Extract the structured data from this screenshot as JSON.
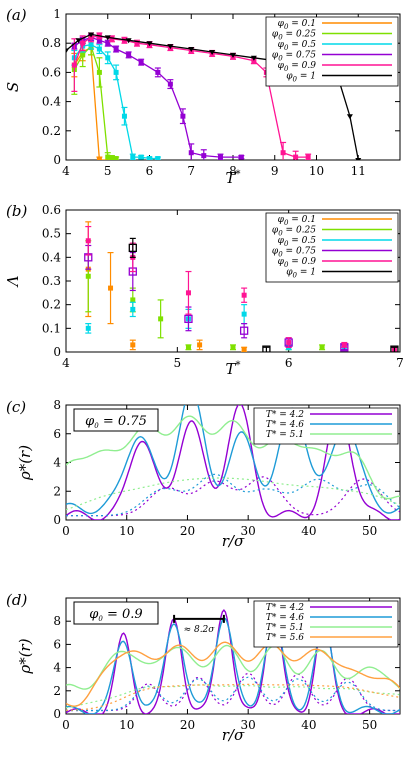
{
  "chart_data": [
    {
      "panel": "(a)",
      "type": "line",
      "xlabel": "T*",
      "ylabel": "S",
      "xlim": [
        4,
        12
      ],
      "ylim": [
        0,
        1
      ],
      "xticks": [
        "4",
        "5",
        "6",
        "7",
        "8",
        "9",
        "10",
        "11"
      ],
      "yticks": [
        "0",
        "0.2",
        "0.4",
        "0.6",
        "0.8",
        "1"
      ],
      "legend_position": "top-right",
      "series": [
        {
          "name": "φ0 = 0.1",
          "color": "#ff8c00",
          "x": [
            4.2,
            4.4,
            4.6,
            4.8,
            5.1
          ],
          "y": [
            0.65,
            0.74,
            0.77,
            0.0,
            0.0
          ],
          "err": [
            0.08,
            0.06,
            0.05,
            0.02,
            0.01
          ]
        },
        {
          "name": "φ0 = 0.25",
          "color": "#7fe000",
          "x": [
            4.2,
            4.4,
            4.6,
            4.8,
            5.0,
            5.1,
            5.2
          ],
          "y": [
            0.62,
            0.72,
            0.78,
            0.6,
            0.02,
            0.01,
            0.01
          ],
          "err": [
            0.17,
            0.08,
            0.06,
            0.1,
            0.03,
            0.02,
            0.01
          ]
        },
        {
          "name": "φ0 = 0.5",
          "color": "#00d8e8",
          "x": [
            4.2,
            4.4,
            4.6,
            4.8,
            5.0,
            5.2,
            5.4,
            5.6,
            5.8,
            6.0,
            6.2
          ],
          "y": [
            0.7,
            0.78,
            0.79,
            0.76,
            0.7,
            0.6,
            0.3,
            0.02,
            0.02,
            0.01,
            0.01
          ],
          "err": [
            0.05,
            0.04,
            0.03,
            0.03,
            0.04,
            0.05,
            0.06,
            0.02,
            0.01,
            0.01,
            0.01
          ]
        },
        {
          "name": "φ0 = 0.75",
          "color": "#9400d3",
          "x": [
            4.2,
            4.4,
            4.6,
            4.8,
            5.0,
            5.2,
            5.5,
            5.8,
            6.2,
            6.5,
            6.8,
            7.0,
            7.3,
            7.7,
            8.2
          ],
          "y": [
            0.78,
            0.82,
            0.84,
            0.82,
            0.8,
            0.76,
            0.72,
            0.67,
            0.6,
            0.52,
            0.3,
            0.05,
            0.03,
            0.02,
            0.02
          ],
          "err": [
            0.02,
            0.02,
            0.02,
            0.02,
            0.02,
            0.02,
            0.02,
            0.02,
            0.03,
            0.03,
            0.05,
            0.06,
            0.04,
            0.02,
            0.01
          ]
        },
        {
          "name": "φ0 = 0.9",
          "color": "#ff1493",
          "x": [
            4.2,
            4.4,
            4.6,
            4.8,
            5.1,
            5.4,
            5.7,
            6.0,
            6.5,
            7.0,
            7.5,
            8.0,
            8.5,
            8.8,
            9.2,
            9.5,
            9.8
          ],
          "y": [
            0.65,
            0.8,
            0.84,
            0.85,
            0.83,
            0.82,
            0.8,
            0.79,
            0.77,
            0.75,
            0.73,
            0.71,
            0.68,
            0.6,
            0.05,
            0.02,
            0.02
          ],
          "err": [
            0.18,
            0.05,
            0.03,
            0.02,
            0.02,
            0.02,
            0.02,
            0.02,
            0.02,
            0.02,
            0.02,
            0.02,
            0.02,
            0.03,
            0.07,
            0.04,
            0.02
          ]
        },
        {
          "name": "φ0 = 1",
          "color": "#000000",
          "x": [
            4.0,
            4.3,
            4.6,
            5.0,
            5.5,
            6.0,
            6.5,
            7.0,
            7.5,
            8.0,
            8.5,
            9.0,
            9.5,
            10.0,
            10.5,
            10.8,
            11.0
          ],
          "y": [
            0.75,
            0.82,
            0.86,
            0.84,
            0.82,
            0.8,
            0.78,
            0.76,
            0.74,
            0.72,
            0.7,
            0.68,
            0.66,
            0.63,
            0.58,
            0.3,
            0.0
          ],
          "err": [
            0,
            0,
            0,
            0,
            0,
            0,
            0,
            0,
            0,
            0,
            0,
            0,
            0,
            0,
            0,
            0,
            0
          ]
        }
      ]
    },
    {
      "panel": "(b)",
      "type": "scatter",
      "xlabel": "T*",
      "ylabel": "Λ",
      "xlim": [
        4,
        7
      ],
      "ylim": [
        0,
        0.6
      ],
      "xticks": [
        "4",
        "5",
        "6",
        "7"
      ],
      "yticks": [
        "0",
        "0.1",
        "0.2",
        "0.3",
        "0.4",
        "0.5",
        "0.6"
      ],
      "legend_position": "top-right",
      "series": [
        {
          "name": "φ0 = 0.1",
          "color": "#ff8c00",
          "x": [
            4.2,
            4.4,
            4.6,
            5.2,
            5.6
          ],
          "y": [
            0.35,
            0.27,
            0.03,
            0.03,
            0.01
          ],
          "err": [
            0.2,
            0.15,
            0.02,
            0.02,
            0.01
          ]
        },
        {
          "name": "φ0 = 0.25",
          "color": "#7fe000",
          "x": [
            4.2,
            4.6,
            4.85,
            5.1,
            5.5,
            6.0,
            6.3
          ],
          "y": [
            0.32,
            0.22,
            0.14,
            0.02,
            0.02,
            0.02,
            0.02
          ],
          "err": [
            0.15,
            0.05,
            0.08,
            0.01,
            0.01,
            0.01,
            0.01
          ]
        },
        {
          "name": "φ0 = 0.5",
          "color": "#00d8e8",
          "x": [
            4.2,
            4.6,
            5.1,
            5.6,
            6.0,
            6.5
          ],
          "y": [
            0.1,
            0.18,
            0.14,
            0.16,
            0.02,
            0.02
          ],
          "err": [
            0.02,
            0.03,
            0.04,
            0.04,
            0.01,
            0.01
          ]
        },
        {
          "name": "φ0 = 0.75",
          "color": "#9400d3",
          "open": true,
          "x": [
            4.2,
            4.6,
            5.1,
            5.6,
            6.0,
            6.5
          ],
          "y": [
            0.4,
            0.34,
            0.14,
            0.09,
            0.04,
            0.02
          ],
          "err": [
            0.05,
            0.08,
            0.05,
            0.03,
            0.02,
            0.01
          ]
        },
        {
          "name": "φ0 = 0.9",
          "color": "#ff1493",
          "x": [
            4.2,
            4.6,
            5.1,
            5.6,
            6.0,
            6.5,
            6.95
          ],
          "y": [
            0.47,
            0.4,
            0.25,
            0.24,
            0.04,
            0.03,
            0.01
          ],
          "err": [
            0.06,
            0.06,
            0.09,
            0.03,
            0.02,
            0.01,
            0.01
          ]
        },
        {
          "name": "φ0 = 1",
          "color": "#000000",
          "open": true,
          "x": [
            4.6,
            5.8,
            6.95
          ],
          "y": [
            0.44,
            0.01,
            0.01
          ],
          "err": [
            0.04,
            0.01,
            0.01
          ]
        }
      ]
    },
    {
      "panel": "(c)",
      "type": "line",
      "xlabel": "r/σ",
      "ylabel": "ρ*(r)",
      "xlim": [
        0,
        55
      ],
      "ylim": [
        0,
        8
      ],
      "xticks": [
        "0",
        "10",
        "20",
        "30",
        "40",
        "50"
      ],
      "yticks": [
        "0",
        "2",
        "4",
        "6",
        "8"
      ],
      "box_label": "φ0 = 0.75",
      "legend_position": "top-right",
      "series": [
        {
          "name": "T* = 4.2",
          "color": "#9400d3",
          "peaks": [
            12.5,
            20.5,
            28.5,
            45.0
          ],
          "amp": [
            5.5,
            6.7,
            7.6,
            7.3
          ],
          "width": 2.0,
          "base": 0.3
        },
        {
          "name": "T* = 4.6",
          "color": "#1e9bd7",
          "peaks": [
            12.0,
            20.5,
            29.0,
            37.5,
            46.0
          ],
          "amp": [
            5.2,
            8.0,
            5.0,
            7.0,
            6.0
          ],
          "width": 2.2,
          "base": 0.8
        },
        {
          "name": "T* = 5.1",
          "color": "#90ee90",
          "peaks": [
            3.0,
            12.0,
            20.0,
            28.0,
            37.0,
            46.0
          ],
          "amp": [
            3.3,
            4.5,
            5.0,
            4.8,
            4.2,
            3.5
          ],
          "width": 3.5,
          "base": 1.2
        }
      ]
    },
    {
      "panel": "(d)",
      "type": "line",
      "xlabel": "r/σ",
      "ylabel": "ρ*(r)",
      "xlim": [
        0,
        55
      ],
      "ylim": [
        0,
        10
      ],
      "xticks": [
        "0",
        "10",
        "20",
        "30",
        "40",
        "50"
      ],
      "yticks": [
        "0",
        "2",
        "4",
        "6",
        "8"
      ],
      "box_label": "φ0 = 0.9",
      "annotation": "≈ 8.2σ",
      "legend_position": "top-right",
      "series": [
        {
          "name": "T* = 4.2",
          "color": "#9400d3",
          "peaks": [
            9.5,
            17.8,
            26.0,
            34.2,
            42.4
          ],
          "amp": [
            6.6,
            8.2,
            9.2,
            9.0,
            8.0
          ],
          "width": 1.3,
          "base": 0.1
        },
        {
          "name": "T* = 4.6",
          "color": "#1e9bd7",
          "peaks": [
            9.5,
            17.8,
            26.0,
            34.2,
            42.4
          ],
          "amp": [
            6.0,
            7.8,
            8.2,
            7.8,
            7.0
          ],
          "width": 1.5,
          "base": 0.3
        },
        {
          "name": "T* = 5.1",
          "color": "#90ee90",
          "peaks": [
            1.5,
            9.5,
            17.8,
            26.0,
            34.2,
            42.4,
            51.0
          ],
          "amp": [
            1.8,
            5.0,
            5.2,
            5.0,
            4.8,
            4.5,
            3.5
          ],
          "width": 2.8,
          "base": 0.6
        },
        {
          "name": "T* = 5.6",
          "color": "#ffa040",
          "peaks": [
            9.5,
            17.8,
            26.0,
            34.2,
            42.4,
            51.0
          ],
          "amp": [
            4.5,
            4.6,
            4.7,
            4.6,
            4.4,
            2.5
          ],
          "width": 3.2,
          "base": 0.8
        }
      ]
    }
  ]
}
